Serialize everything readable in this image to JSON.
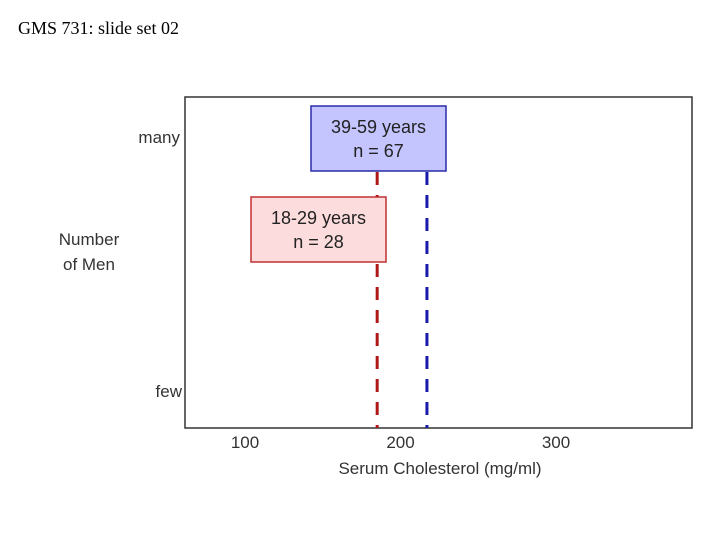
{
  "header": {
    "text": "GMS 731: slide set 02"
  },
  "chart_data": {
    "type": "line",
    "title": "",
    "xlabel": "Serum Cholesterol (mg/ml)",
    "ylabel_lines": [
      "Number",
      "of Men"
    ],
    "y_tick_labels": {
      "top": "many",
      "bottom": "few"
    },
    "x_ticks": [
      100,
      200,
      300
    ],
    "xlim": [
      60,
      390
    ],
    "grid": false,
    "series": [
      {
        "name_lines": [
          "18-29  years",
          "n = 28"
        ],
        "mean": 185,
        "color": "#b01818",
        "box_fill": "#fcdcdc",
        "box_border": "#c03030"
      },
      {
        "name_lines": [
          "39-59  years",
          "n = 67"
        ],
        "mean": 217,
        "color": "#1a1aaa",
        "box_fill": "#c4c4ff",
        "box_border": "#2a2aa8"
      }
    ]
  }
}
